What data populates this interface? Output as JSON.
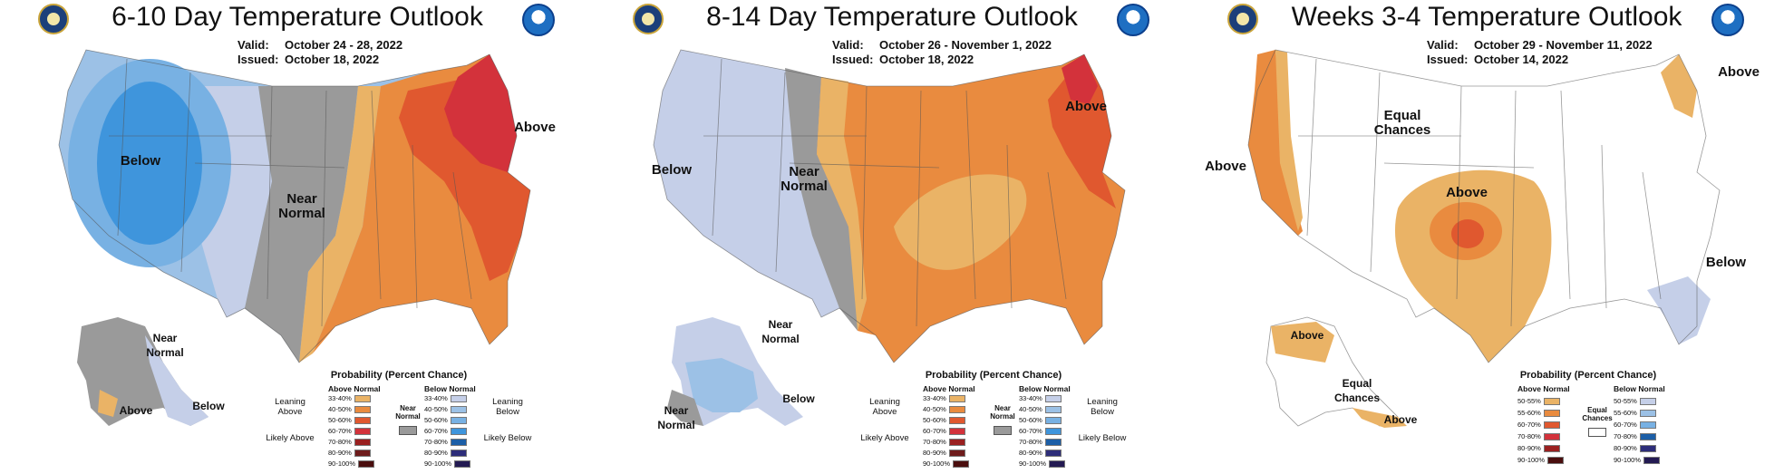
{
  "colors": {
    "below_33_40": "#c5cfe8",
    "below_40_50": "#9cc1e6",
    "below_50_60": "#78b1e3",
    "below_60_70": "#3f95dc",
    "near": "#9a9a9a",
    "above_33_40": "#eab366",
    "above_40_50": "#e98b3f",
    "above_50_60": "#e0582f",
    "above_60_70": "#d3323b",
    "above_70_80": "#9a2020",
    "above_80_90": "#6e1b1b",
    "above_90_100": "#4a0e0e",
    "below_70_80": "#1c5fa7",
    "below_80_90": "#2d2d79",
    "below_90_100": "#231a52",
    "equal": "#ffffff"
  },
  "panels": [
    {
      "title": "6-10 Day Temperature Outlook",
      "valid_label": "Valid:",
      "valid": "October 24 - 28, 2022",
      "issued_label": "Issued:",
      "issued": "October 18, 2022",
      "labels": [
        "Below",
        "Near Normal",
        "Above",
        "Near Normal",
        "Above",
        "Below"
      ],
      "legend": {
        "title": "Probability (Percent Chance)",
        "above_header": "Above Normal",
        "below_header": "Below Normal",
        "above_rows": [
          "33-40%",
          "40-50%",
          "50-60%",
          "60-70%",
          "70-80%",
          "80-90%",
          "90-100%"
        ],
        "below_rows": [
          "33-40%",
          "40-50%",
          "50-60%",
          "60-70%",
          "70-80%",
          "80-90%",
          "90-100%"
        ],
        "center": "Near Normal",
        "left_top": "Leaning Above",
        "left_bottom": "Likely Above",
        "right_top": "Leaning Below",
        "right_bottom": "Likely Below"
      }
    },
    {
      "title": "8-14 Day Temperature Outlook",
      "valid_label": "Valid:",
      "valid": "October 26 - November 1, 2022",
      "issued_label": "Issued:",
      "issued": "October 18, 2022",
      "labels": [
        "Below",
        "Near Normal",
        "Above",
        "Near Normal",
        "Below",
        "Near Normal"
      ],
      "legend": {
        "title": "Probability (Percent Chance)",
        "above_header": "Above Normal",
        "below_header": "Below Normal",
        "above_rows": [
          "33-40%",
          "40-50%",
          "50-60%",
          "60-70%",
          "70-80%",
          "80-90%",
          "90-100%"
        ],
        "below_rows": [
          "33-40%",
          "40-50%",
          "50-60%",
          "60-70%",
          "70-80%",
          "80-90%",
          "90-100%"
        ],
        "center": "Near Normal",
        "left_top": "Leaning Above",
        "left_bottom": "Likely Above",
        "right_top": "Leaning Below",
        "right_bottom": "Likely Below"
      }
    },
    {
      "title": "Weeks 3-4 Temperature Outlook",
      "valid_label": "Valid:",
      "valid": "October 29 - November 11, 2022",
      "issued_label": "Issued:",
      "issued": "October 14, 2022",
      "labels": [
        "Equal Chances",
        "Above",
        "Above",
        "Above",
        "Below",
        "Above",
        "Equal Chances",
        "Above"
      ],
      "legend": {
        "title": "Probability (Percent Chance)",
        "above_header": "Above Normal",
        "below_header": "Below Normal",
        "above_rows": [
          "50-55%",
          "55-60%",
          "60-70%",
          "70-80%",
          "80-90%",
          "90-100%"
        ],
        "below_rows": [
          "50-55%",
          "55-60%",
          "60-70%",
          "70-80%",
          "80-90%",
          "90-100%"
        ],
        "center": "Equal Chances"
      }
    }
  ]
}
